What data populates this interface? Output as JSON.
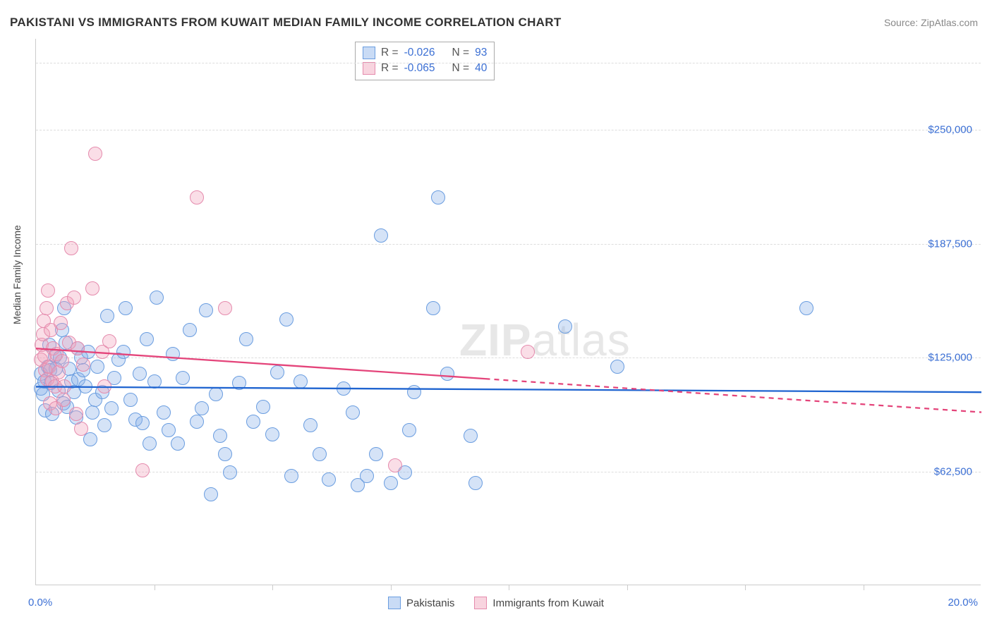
{
  "title": "PAKISTANI VS IMMIGRANTS FROM KUWAIT MEDIAN FAMILY INCOME CORRELATION CHART",
  "source": "Source: ZipAtlas.com",
  "ylabel": "Median Family Income",
  "watermark_bold": "ZIP",
  "watermark_light": "atlas",
  "chart": {
    "type": "scatter",
    "background_color": "#ffffff",
    "grid_color": "#dddddd",
    "axis_color": "#cccccc",
    "tick_label_color": "#3b6fd4",
    "xlim": [
      0,
      20
    ],
    "ylim": [
      0,
      300000
    ],
    "xaxis_min_label": "0.0%",
    "xaxis_max_label": "20.0%",
    "xticks": [
      2.5,
      5.0,
      7.5,
      10.0,
      12.5,
      15.0,
      17.5
    ],
    "y_gridlines": [
      {
        "y": 62500,
        "label": "$62,500"
      },
      {
        "y": 125000,
        "label": "$125,000"
      },
      {
        "y": 187500,
        "label": "$187,500"
      },
      {
        "y": 250000,
        "label": "$250,000"
      },
      {
        "y": 287000,
        "label": null
      }
    ],
    "marker_radius": 10,
    "marker_border_width": 1.2,
    "series": [
      {
        "name": "Pakistanis",
        "fill": "rgba(135,176,232,0.35)",
        "stroke": "#6a9de0",
        "R": "-0.026",
        "N": "93",
        "trend": {
          "x1": 0.0,
          "y1": 109000,
          "x2": 20.0,
          "y2": 106000,
          "solid_until_x": 20.0,
          "color": "#1f64d0",
          "width": 2.3
        },
        "points": [
          [
            0.1,
            108000
          ],
          [
            0.1,
            116000
          ],
          [
            0.15,
            105000
          ],
          [
            0.18,
            112000
          ],
          [
            0.2,
            96000
          ],
          [
            0.25,
            120000
          ],
          [
            0.28,
            132000
          ],
          [
            0.3,
            118000
          ],
          [
            0.32,
            111000
          ],
          [
            0.35,
            94000
          ],
          [
            0.4,
            126000
          ],
          [
            0.42,
            119000
          ],
          [
            0.48,
            107000
          ],
          [
            0.5,
            125000
          ],
          [
            0.55,
            140000
          ],
          [
            0.58,
            100000
          ],
          [
            0.6,
            152000
          ],
          [
            0.62,
            133000
          ],
          [
            0.65,
            98000
          ],
          [
            0.7,
            119000
          ],
          [
            0.75,
            112000
          ],
          [
            0.8,
            106000
          ],
          [
            0.85,
            92000
          ],
          [
            0.88,
            130000
          ],
          [
            0.9,
            113000
          ],
          [
            0.95,
            125000
          ],
          [
            1.0,
            118000
          ],
          [
            1.05,
            109000
          ],
          [
            1.1,
            128000
          ],
          [
            1.15,
            80000
          ],
          [
            1.2,
            95000
          ],
          [
            1.25,
            102000
          ],
          [
            1.3,
            120000
          ],
          [
            1.4,
            106000
          ],
          [
            1.45,
            88000
          ],
          [
            1.5,
            148000
          ],
          [
            1.6,
            97000
          ],
          [
            1.65,
            114000
          ],
          [
            1.75,
            124000
          ],
          [
            1.85,
            128000
          ],
          [
            1.9,
            152000
          ],
          [
            2.0,
            102000
          ],
          [
            2.1,
            91000
          ],
          [
            2.2,
            116000
          ],
          [
            2.25,
            89000
          ],
          [
            2.35,
            135000
          ],
          [
            2.4,
            78000
          ],
          [
            2.5,
            112000
          ],
          [
            2.55,
            158000
          ],
          [
            2.7,
            95000
          ],
          [
            2.8,
            85000
          ],
          [
            2.9,
            127000
          ],
          [
            3.0,
            78000
          ],
          [
            3.1,
            114000
          ],
          [
            3.25,
            140000
          ],
          [
            3.4,
            90000
          ],
          [
            3.5,
            97000
          ],
          [
            3.6,
            151000
          ],
          [
            3.7,
            50000
          ],
          [
            3.8,
            105000
          ],
          [
            3.9,
            82000
          ],
          [
            4.0,
            72000
          ],
          [
            4.1,
            62000
          ],
          [
            4.3,
            111000
          ],
          [
            4.45,
            135000
          ],
          [
            4.6,
            90000
          ],
          [
            4.8,
            98000
          ],
          [
            5.0,
            83000
          ],
          [
            5.1,
            117000
          ],
          [
            5.3,
            146000
          ],
          [
            5.4,
            60000
          ],
          [
            5.6,
            112000
          ],
          [
            5.8,
            88000
          ],
          [
            6.0,
            72000
          ],
          [
            6.2,
            58000
          ],
          [
            6.5,
            108000
          ],
          [
            6.7,
            95000
          ],
          [
            6.8,
            55000
          ],
          [
            7.0,
            60000
          ],
          [
            7.2,
            72000
          ],
          [
            7.3,
            192000
          ],
          [
            7.5,
            56000
          ],
          [
            7.8,
            62000
          ],
          [
            7.9,
            85000
          ],
          [
            8.0,
            106000
          ],
          [
            8.4,
            152000
          ],
          [
            8.5,
            213000
          ],
          [
            8.7,
            116000
          ],
          [
            9.2,
            82000
          ],
          [
            9.3,
            56000
          ],
          [
            11.2,
            142000
          ],
          [
            12.3,
            120000
          ],
          [
            16.3,
            152000
          ]
        ]
      },
      {
        "name": "Immigrants from Kuwait",
        "fill": "rgba(240,160,185,0.35)",
        "stroke": "#e58bad",
        "R": "-0.065",
        "N": "40",
        "trend": {
          "x1": 0.0,
          "y1": 130000,
          "x2": 20.0,
          "y2": 95000,
          "solid_until_x": 9.5,
          "color": "#e4447a",
          "width": 2.3
        },
        "points": [
          [
            0.1,
            124000
          ],
          [
            0.12,
            132000
          ],
          [
            0.15,
            138000
          ],
          [
            0.16,
            145000
          ],
          [
            0.18,
            126000
          ],
          [
            0.2,
            118000
          ],
          [
            0.22,
            152000
          ],
          [
            0.24,
            113000
          ],
          [
            0.26,
            162000
          ],
          [
            0.28,
            120000
          ],
          [
            0.3,
            100000
          ],
          [
            0.32,
            140000
          ],
          [
            0.34,
            112000
          ],
          [
            0.36,
            130000
          ],
          [
            0.4,
            109000
          ],
          [
            0.42,
            97000
          ],
          [
            0.44,
            127000
          ],
          [
            0.48,
            117000
          ],
          [
            0.52,
            144000
          ],
          [
            0.55,
            123000
          ],
          [
            0.58,
            102000
          ],
          [
            0.6,
            109000
          ],
          [
            0.65,
            155000
          ],
          [
            0.7,
            133000
          ],
          [
            0.75,
            185000
          ],
          [
            0.8,
            158000
          ],
          [
            0.85,
            94000
          ],
          [
            0.88,
            130000
          ],
          [
            0.95,
            86000
          ],
          [
            1.0,
            121000
          ],
          [
            1.2,
            163000
          ],
          [
            1.25,
            237000
          ],
          [
            1.4,
            128000
          ],
          [
            1.45,
            109000
          ],
          [
            1.55,
            134000
          ],
          [
            2.25,
            63000
          ],
          [
            3.4,
            213000
          ],
          [
            4.0,
            152000
          ],
          [
            7.6,
            66000
          ],
          [
            10.4,
            128000
          ]
        ]
      }
    ]
  },
  "legend_top": {
    "R_label": "R =",
    "N_label": "N ="
  },
  "legend_bottom": {
    "s1": "Pakistanis",
    "s2": "Immigrants from Kuwait"
  }
}
